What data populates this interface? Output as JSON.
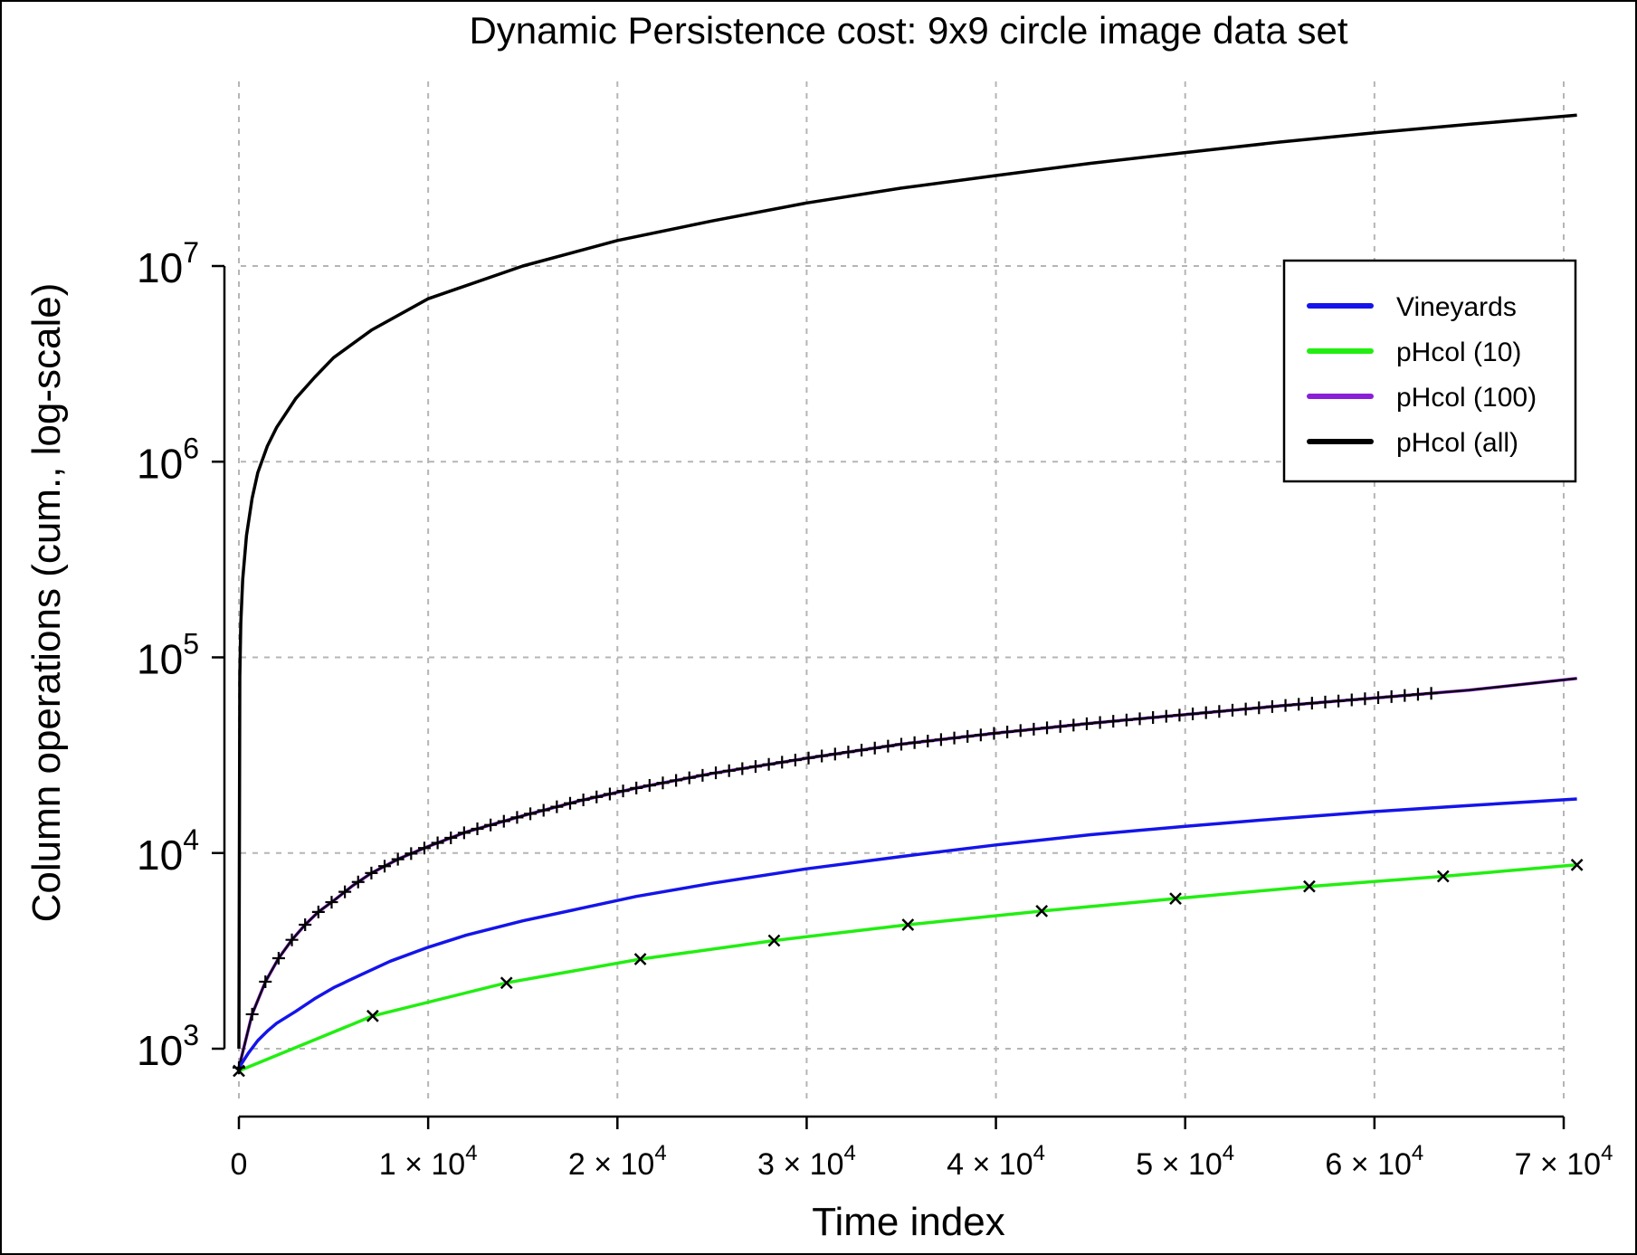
{
  "chart_data": {
    "type": "line",
    "title": "Dynamic Persistence cost: 9x9 circle image data set",
    "xlabel": "Time index",
    "ylabel": "Column operations (cum., log-scale)",
    "x_scale": "linear",
    "y_scale": "log",
    "xlim": [
      0,
      70000
    ],
    "ylim": [
      500,
      100000000
    ],
    "grid": true,
    "legend_position": "top-right",
    "x_ticks": [
      {
        "value": 0,
        "label": "0",
        "exp": ""
      },
      {
        "value": 10000,
        "label": "1 × 10",
        "exp": "4"
      },
      {
        "value": 20000,
        "label": "2 × 10",
        "exp": "4"
      },
      {
        "value": 30000,
        "label": "3 × 10",
        "exp": "4"
      },
      {
        "value": 40000,
        "label": "4 × 10",
        "exp": "4"
      },
      {
        "value": 50000,
        "label": "5 × 10",
        "exp": "4"
      },
      {
        "value": 60000,
        "label": "6 × 10",
        "exp": "4"
      },
      {
        "value": 70000,
        "label": "7 × 10",
        "exp": "4"
      }
    ],
    "y_ticks": [
      {
        "value": 1000,
        "label": "10",
        "exp": "3"
      },
      {
        "value": 10000,
        "label": "10",
        "exp": "4"
      },
      {
        "value": 100000,
        "label": "10",
        "exp": "5"
      },
      {
        "value": 1000000,
        "label": "10",
        "exp": "6"
      },
      {
        "value": 10000000,
        "label": "10",
        "exp": "7"
      }
    ],
    "series": [
      {
        "name": "pHcol (all)",
        "color": "#000000",
        "marker": "none",
        "x": [
          0,
          50,
          100,
          200,
          400,
          700,
          1000,
          1500,
          2000,
          3000,
          4000,
          5000,
          7000,
          10000,
          15000,
          20000,
          25000,
          30000,
          35000,
          40000,
          45000,
          50000,
          55000,
          60000,
          65000,
          70700
        ],
        "y": [
          1000,
          80000,
          150000,
          250000,
          420000,
          650000,
          880000,
          1200000,
          1500000,
          2100000,
          2700000,
          3400000,
          4700000,
          6800000,
          10000000,
          13500000,
          17000000,
          21000000,
          25000000,
          29000000,
          33500000,
          38000000,
          43000000,
          48000000,
          53000000,
          59000000
        ]
      },
      {
        "name": "pHcol (100)",
        "color": "#8a1fd8",
        "marker": "plus",
        "x": [
          0,
          700,
          1400,
          2100,
          2800,
          3500,
          4200,
          5000,
          6000,
          7000,
          8500,
          10000,
          12000,
          15000,
          18000,
          21000,
          25000,
          30000,
          35000,
          40000,
          45000,
          50000,
          55000,
          60000,
          65000,
          70700
        ],
        "y": [
          800,
          1500,
          2200,
          2900,
          3600,
          4300,
          5000,
          5700,
          6800,
          7900,
          9400,
          10800,
          12800,
          15500,
          18500,
          21500,
          25500,
          30500,
          36000,
          41000,
          46000,
          51000,
          56500,
          62000,
          68000,
          78000
        ]
      },
      {
        "name": "Vineyards",
        "color": "#1414ea",
        "marker": "none",
        "x": [
          0,
          500,
          1000,
          1500,
          2000,
          3000,
          4000,
          5000,
          6500,
          8000,
          10000,
          12000,
          15000,
          18000,
          21000,
          25000,
          30000,
          35000,
          40000,
          45000,
          50000,
          55000,
          60000,
          65000,
          70700
        ],
        "y": [
          800,
          950,
          1100,
          1230,
          1350,
          1550,
          1800,
          2050,
          2400,
          2800,
          3300,
          3800,
          4500,
          5200,
          6000,
          7000,
          8300,
          9600,
          11000,
          12400,
          13700,
          15000,
          16300,
          17500,
          18900
        ]
      },
      {
        "name": "pHcol (10)",
        "color": "#22ee11",
        "marker": "cross",
        "x": [
          0,
          7070,
          14140,
          21210,
          28280,
          35350,
          42420,
          49490,
          56560,
          63630,
          70700
        ],
        "y": [
          770,
          1470,
          2170,
          2870,
          3570,
          4300,
          5050,
          5850,
          6750,
          7600,
          8700
        ]
      }
    ]
  }
}
